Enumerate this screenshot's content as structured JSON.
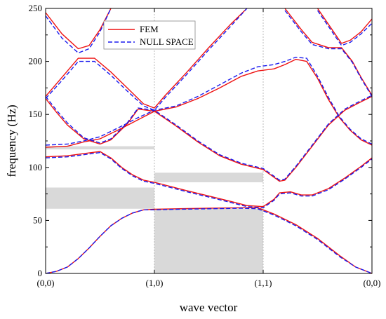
{
  "chart_data": {
    "type": "line",
    "xlabel": "wave vector",
    "ylabel": "frequency (Hz)",
    "xlim": [
      0,
      3
    ],
    "ylim": [
      0,
      250
    ],
    "x_ticks": [
      {
        "value": 0,
        "label": "(0,0)"
      },
      {
        "value": 1,
        "label": "(1,0)"
      },
      {
        "value": 2,
        "label": "(1,1)"
      },
      {
        "value": 3,
        "label": "(0,0)"
      }
    ],
    "y_ticks": [
      0,
      50,
      100,
      150,
      200,
      250
    ],
    "grid": "vertical dotted lines at (1,0) and (1,1)",
    "legend_position": "top-left",
    "colors": {
      "fem": "#ee1111",
      "null_space": "#1a1aee",
      "band_gap": "#d9d9d9"
    },
    "legend": [
      {
        "label": "FEM",
        "style": "solid",
        "color": "#ee1111"
      },
      {
        "label": "NULL SPACE",
        "style": "dashed",
        "color": "#1a1aee"
      }
    ],
    "band_gaps": [
      {
        "x": [
          1,
          2
        ],
        "y": [
          0,
          61
        ]
      },
      {
        "x": [
          0,
          1
        ],
        "y": [
          61,
          81
        ]
      },
      {
        "x": [
          1,
          2
        ],
        "y": [
          86,
          95
        ]
      },
      {
        "x": [
          0,
          1
        ],
        "y": [
          117,
          120
        ]
      }
    ],
    "series": [
      {
        "name": "FEM",
        "style": "solid",
        "color": "#ee1111",
        "branches": [
          [
            [
              0,
              0
            ],
            [
              0.1,
              2
            ],
            [
              0.2,
              6
            ],
            [
              0.3,
              14
            ],
            [
              0.4,
              24
            ],
            [
              0.5,
              35
            ],
            [
              0.6,
              45
            ],
            [
              0.7,
              52
            ],
            [
              0.8,
              57
            ],
            [
              0.9,
              60
            ],
            [
              1,
              60.5
            ],
            [
              1.2,
              61
            ],
            [
              1.5,
              61.5
            ],
            [
              1.8,
              62
            ],
            [
              1.95,
              62
            ],
            [
              2.1,
              56
            ],
            [
              2.3,
              46
            ],
            [
              2.5,
              33
            ],
            [
              2.7,
              17
            ],
            [
              2.85,
              6
            ],
            [
              3,
              0
            ]
          ],
          [
            [
              0,
              110
            ],
            [
              0.2,
              111
            ],
            [
              0.35,
              113
            ],
            [
              0.5,
              115
            ],
            [
              0.6,
              109
            ],
            [
              0.7,
              100
            ],
            [
              0.8,
              93
            ],
            [
              0.9,
              88
            ],
            [
              1,
              86
            ],
            [
              1.15,
              82
            ],
            [
              1.3,
              78
            ],
            [
              1.5,
              73
            ],
            [
              1.7,
              68
            ],
            [
              1.85,
              64
            ],
            [
              2,
              63
            ],
            [
              2.1,
              70
            ],
            [
              2.15,
              76
            ],
            [
              2.25,
              77
            ],
            [
              2.35,
              74
            ],
            [
              2.45,
              74
            ],
            [
              2.6,
              80
            ],
            [
              2.75,
              90
            ],
            [
              2.9,
              101
            ],
            [
              3,
              109
            ]
          ],
          [
            [
              0,
              119
            ],
            [
              0.2,
              120
            ],
            [
              0.35,
              124
            ],
            [
              0.5,
              127
            ],
            [
              0.7,
              137
            ],
            [
              0.85,
              145
            ],
            [
              1,
              153
            ],
            [
              1.2,
              157
            ],
            [
              1.4,
              165
            ],
            [
              1.6,
              175
            ],
            [
              1.8,
              186
            ],
            [
              1.95,
              191
            ],
            [
              2.1,
              193
            ],
            [
              2.2,
              197
            ],
            [
              2.3,
              202
            ],
            [
              2.4,
              200
            ],
            [
              2.5,
              184
            ],
            [
              2.6,
              164
            ],
            [
              2.7,
              147
            ],
            [
              2.8,
              135
            ],
            [
              2.9,
              126
            ],
            [
              3,
              121
            ]
          ],
          [
            [
              0,
              165
            ],
            [
              0.1,
              152
            ],
            [
              0.2,
              140
            ],
            [
              0.35,
              127
            ],
            [
              0.5,
              122
            ],
            [
              0.6,
              126
            ],
            [
              0.75,
              141
            ],
            [
              0.85,
              155
            ],
            [
              1,
              153
            ],
            [
              1.2,
              139
            ],
            [
              1.4,
              124
            ],
            [
              1.6,
              111
            ],
            [
              1.8,
              103
            ],
            [
              2,
              98
            ],
            [
              2.15,
              87
            ],
            [
              2.2,
              88
            ],
            [
              2.3,
              100
            ],
            [
              2.45,
              120
            ],
            [
              2.6,
              140
            ],
            [
              2.75,
              154
            ],
            [
              2.9,
              162
            ],
            [
              3,
              167
            ]
          ],
          [
            [
              0,
              167
            ],
            [
              0.15,
              185
            ],
            [
              0.3,
              203
            ],
            [
              0.45,
              203
            ],
            [
              0.6,
              190
            ],
            [
              0.75,
              175
            ],
            [
              0.9,
              160
            ],
            [
              1,
              156
            ],
            [
              1.1,
              168
            ],
            [
              1.3,
              190
            ],
            [
              1.5,
              213
            ],
            [
              1.7,
              235
            ],
            [
              1.85,
              250
            ]
          ],
          [
            [
              0,
              246
            ],
            [
              0.15,
              226
            ],
            [
              0.3,
              212
            ],
            [
              0.4,
              215
            ],
            [
              0.5,
              230
            ],
            [
              0.6,
              250
            ]
          ],
          [
            [
              2.2,
              250
            ],
            [
              2.35,
              230
            ],
            [
              2.45,
              218
            ],
            [
              2.6,
              213
            ],
            [
              2.72,
              213
            ],
            [
              2.82,
              200
            ],
            [
              2.9,
              185
            ],
            [
              3,
              168
            ]
          ],
          [
            [
              2.5,
              250
            ],
            [
              2.62,
              232
            ],
            [
              2.72,
              217
            ],
            [
              2.8,
              220
            ],
            [
              2.9,
              228
            ],
            [
              3,
              240
            ]
          ]
        ]
      },
      {
        "name": "NULL SPACE",
        "style": "dashed",
        "color": "#1a1aee",
        "branches": [
          [
            [
              0,
              0
            ],
            [
              0.1,
              2
            ],
            [
              0.2,
              6
            ],
            [
              0.3,
              14
            ],
            [
              0.4,
              24
            ],
            [
              0.5,
              35
            ],
            [
              0.6,
              45
            ],
            [
              0.7,
              52
            ],
            [
              0.8,
              57
            ],
            [
              0.9,
              60
            ],
            [
              1,
              60
            ],
            [
              1.2,
              60.5
            ],
            [
              1.5,
              61
            ],
            [
              1.8,
              61.5
            ],
            [
              1.95,
              61
            ],
            [
              2.1,
              55
            ],
            [
              2.3,
              45
            ],
            [
              2.5,
              32
            ],
            [
              2.7,
              16
            ],
            [
              2.85,
              6
            ],
            [
              3,
              0
            ]
          ],
          [
            [
              0,
              109
            ],
            [
              0.2,
              110
            ],
            [
              0.35,
              112
            ],
            [
              0.5,
              114
            ],
            [
              0.6,
              108
            ],
            [
              0.7,
              99
            ],
            [
              0.8,
              92
            ],
            [
              0.9,
              87
            ],
            [
              1,
              85
            ],
            [
              1.15,
              81
            ],
            [
              1.3,
              77
            ],
            [
              1.5,
              72
            ],
            [
              1.7,
              67
            ],
            [
              1.85,
              63
            ],
            [
              2,
              62
            ],
            [
              2.1,
              69
            ],
            [
              2.15,
              75
            ],
            [
              2.25,
              76
            ],
            [
              2.35,
              73
            ],
            [
              2.45,
              73
            ],
            [
              2.6,
              79
            ],
            [
              2.75,
              89
            ],
            [
              2.9,
              100
            ],
            [
              3,
              108
            ]
          ],
          [
            [
              0,
              121
            ],
            [
              0.2,
              122
            ],
            [
              0.35,
              125
            ],
            [
              0.5,
              129
            ],
            [
              0.7,
              139
            ],
            [
              0.85,
              147
            ],
            [
              1,
              154
            ],
            [
              1.2,
              158
            ],
            [
              1.4,
              167
            ],
            [
              1.6,
              178
            ],
            [
              1.8,
              189
            ],
            [
              1.95,
              195
            ],
            [
              2.1,
              197
            ],
            [
              2.2,
              200
            ],
            [
              2.3,
              204
            ],
            [
              2.4,
              203
            ],
            [
              2.5,
              186
            ],
            [
              2.6,
              166
            ],
            [
              2.7,
              148
            ],
            [
              2.8,
              136
            ],
            [
              2.9,
              127
            ],
            [
              3,
              122
            ]
          ],
          [
            [
              0,
              167
            ],
            [
              0.1,
              154
            ],
            [
              0.2,
              142
            ],
            [
              0.35,
              128
            ],
            [
              0.5,
              123
            ],
            [
              0.6,
              127
            ],
            [
              0.75,
              142
            ],
            [
              0.85,
              156
            ],
            [
              1,
              154
            ],
            [
              1.2,
              140
            ],
            [
              1.4,
              125
            ],
            [
              1.6,
              112
            ],
            [
              1.8,
              104
            ],
            [
              2,
              99
            ],
            [
              2.15,
              88
            ],
            [
              2.2,
              89
            ],
            [
              2.3,
              101
            ],
            [
              2.45,
              121
            ],
            [
              2.6,
              141
            ],
            [
              2.75,
              155
            ],
            [
              2.9,
              163
            ],
            [
              3,
              168
            ]
          ],
          [
            [
              0,
              165
            ],
            [
              0.15,
              182
            ],
            [
              0.3,
              200
            ],
            [
              0.45,
              200
            ],
            [
              0.6,
              187
            ],
            [
              0.75,
              172
            ],
            [
              0.9,
              158
            ],
            [
              1,
              154
            ],
            [
              1.1,
              166
            ],
            [
              1.3,
              188
            ],
            [
              1.5,
              211
            ],
            [
              1.7,
              233
            ],
            [
              1.85,
              250
            ]
          ],
          [
            [
              0,
              243
            ],
            [
              0.15,
              222
            ],
            [
              0.3,
              208
            ],
            [
              0.4,
              212
            ],
            [
              0.5,
              228
            ],
            [
              0.6,
              250
            ]
          ],
          [
            [
              2.2,
              248
            ],
            [
              2.35,
              228
            ],
            [
              2.45,
              216
            ],
            [
              2.6,
              212
            ],
            [
              2.72,
              212
            ],
            [
              2.82,
              199
            ],
            [
              2.9,
              184
            ],
            [
              3,
              167
            ]
          ],
          [
            [
              2.5,
              248
            ],
            [
              2.62,
              230
            ],
            [
              2.72,
              215
            ],
            [
              2.8,
              218
            ],
            [
              2.9,
              226
            ],
            [
              3,
              236
            ]
          ]
        ]
      }
    ]
  }
}
